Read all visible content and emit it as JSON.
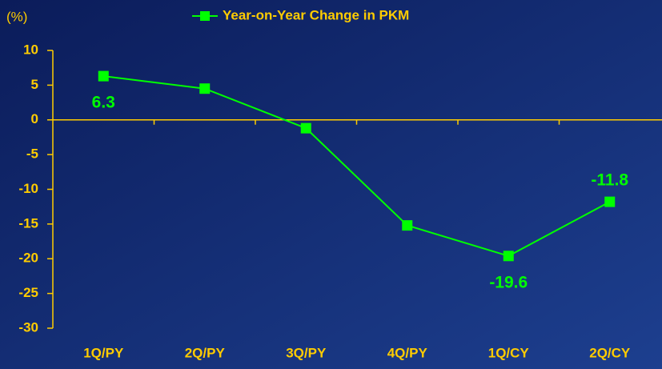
{
  "chart_data": {
    "type": "line",
    "title": "Year-on-Year Change in PKM",
    "y_label": "(%)",
    "categories": [
      "1Q/PY",
      "2Q/PY",
      "3Q/PY",
      "4Q/PY",
      "1Q/CY",
      "2Q/CY"
    ],
    "series": [
      {
        "name": "Year-on-Year Change in PKM",
        "color": "#00ff00",
        "values": [
          6.3,
          4.5,
          -1.2,
          -15.2,
          -19.6,
          -11.8
        ],
        "value_labels": [
          "6.3",
          null,
          null,
          null,
          "-19.6",
          "-11.8"
        ]
      }
    ],
    "ylim": [
      -30,
      10
    ],
    "yticks": [
      10,
      5,
      0,
      -5,
      -10,
      -15,
      -20,
      -25,
      -30
    ],
    "axis_color": "#ffcc00",
    "legend": "top"
  }
}
